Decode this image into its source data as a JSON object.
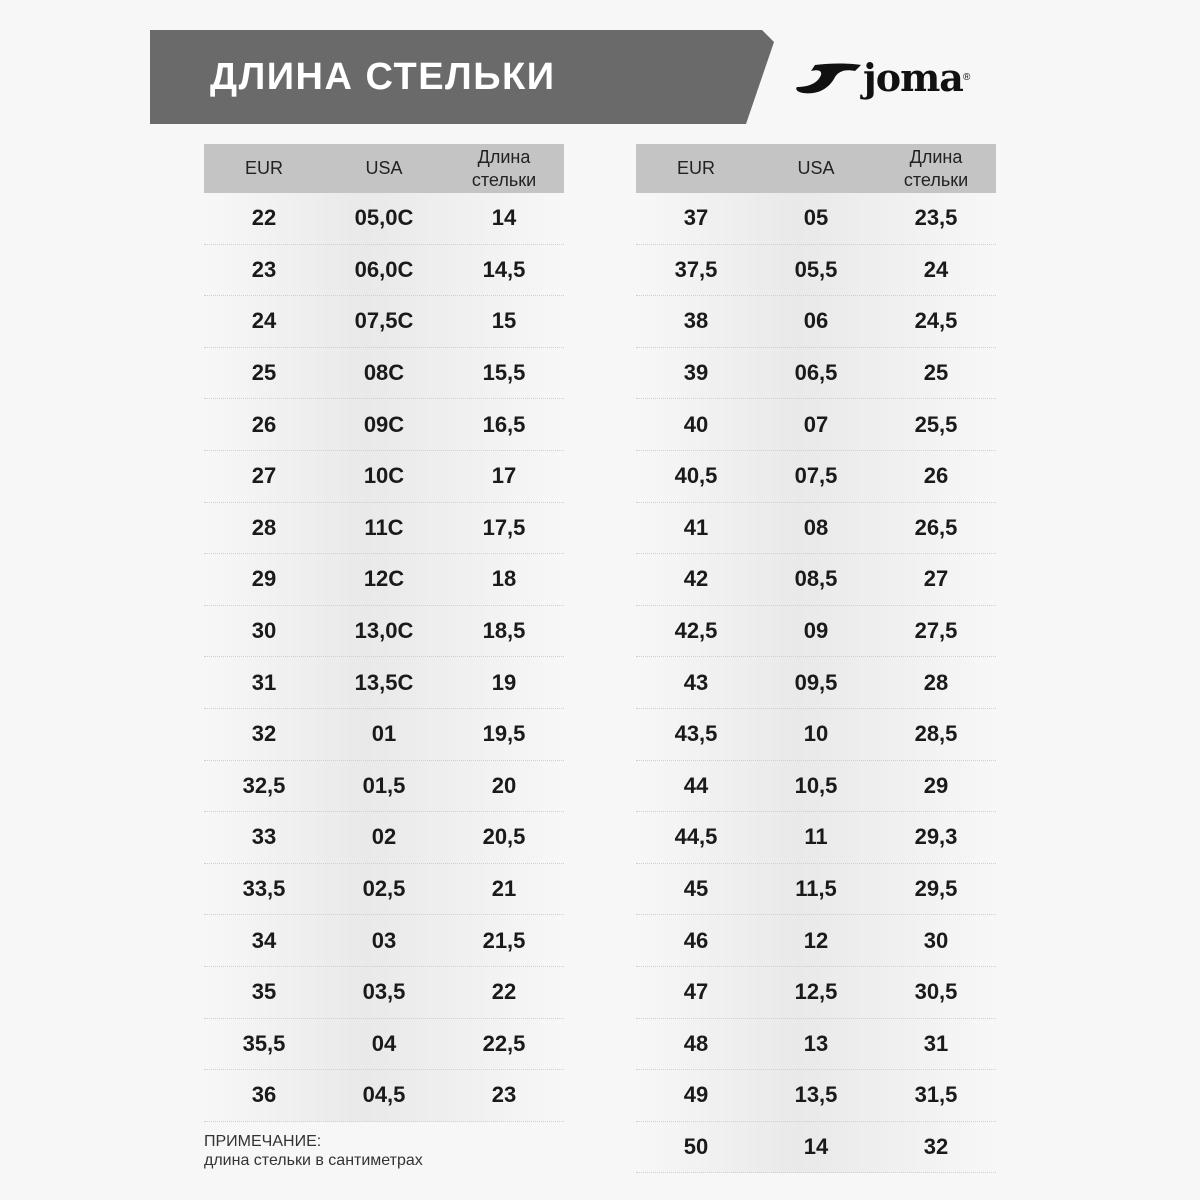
{
  "title": "ДЛИНА СТЕЛЬКИ",
  "logo": "joma",
  "headers": [
    "EUR",
    "USA",
    "Длина стельки"
  ],
  "left_rows": [
    [
      "22",
      "05,0C",
      "14"
    ],
    [
      "23",
      "06,0C",
      "14,5"
    ],
    [
      "24",
      "07,5C",
      "15"
    ],
    [
      "25",
      "08C",
      "15,5"
    ],
    [
      "26",
      "09C",
      "16,5"
    ],
    [
      "27",
      "10C",
      "17"
    ],
    [
      "28",
      "11C",
      "17,5"
    ],
    [
      "29",
      "12C",
      "18"
    ],
    [
      "30",
      "13,0C",
      "18,5"
    ],
    [
      "31",
      "13,5C",
      "19"
    ],
    [
      "32",
      "01",
      "19,5"
    ],
    [
      "32,5",
      "01,5",
      "20"
    ],
    [
      "33",
      "02",
      "20,5"
    ],
    [
      "33,5",
      "02,5",
      "21"
    ],
    [
      "34",
      "03",
      "21,5"
    ],
    [
      "35",
      "03,5",
      "22"
    ],
    [
      "35,5",
      "04",
      "22,5"
    ],
    [
      "36",
      "04,5",
      "23"
    ]
  ],
  "right_rows": [
    [
      "37",
      "05",
      "23,5"
    ],
    [
      "37,5",
      "05,5",
      "24"
    ],
    [
      "38",
      "06",
      "24,5"
    ],
    [
      "39",
      "06,5",
      "25"
    ],
    [
      "40",
      "07",
      "25,5"
    ],
    [
      "40,5",
      "07,5",
      "26"
    ],
    [
      "41",
      "08",
      "26,5"
    ],
    [
      "42",
      "08,5",
      "27"
    ],
    [
      "42,5",
      "09",
      "27,5"
    ],
    [
      "43",
      "09,5",
      "28"
    ],
    [
      "43,5",
      "10",
      "28,5"
    ],
    [
      "44",
      "10,5",
      "29"
    ],
    [
      "44,5",
      "11",
      "29,3"
    ],
    [
      "45",
      "11,5",
      "29,5"
    ],
    [
      "46",
      "12",
      "30"
    ],
    [
      "47",
      "12,5",
      "30,5"
    ],
    [
      "48",
      "13",
      "31"
    ],
    [
      "49",
      "13,5",
      "31,5"
    ],
    [
      "50",
      "14",
      "32"
    ]
  ],
  "note": {
    "label": "ПРИМЕЧАНИЕ:",
    "text": "длина стельки в сантиметрах"
  }
}
